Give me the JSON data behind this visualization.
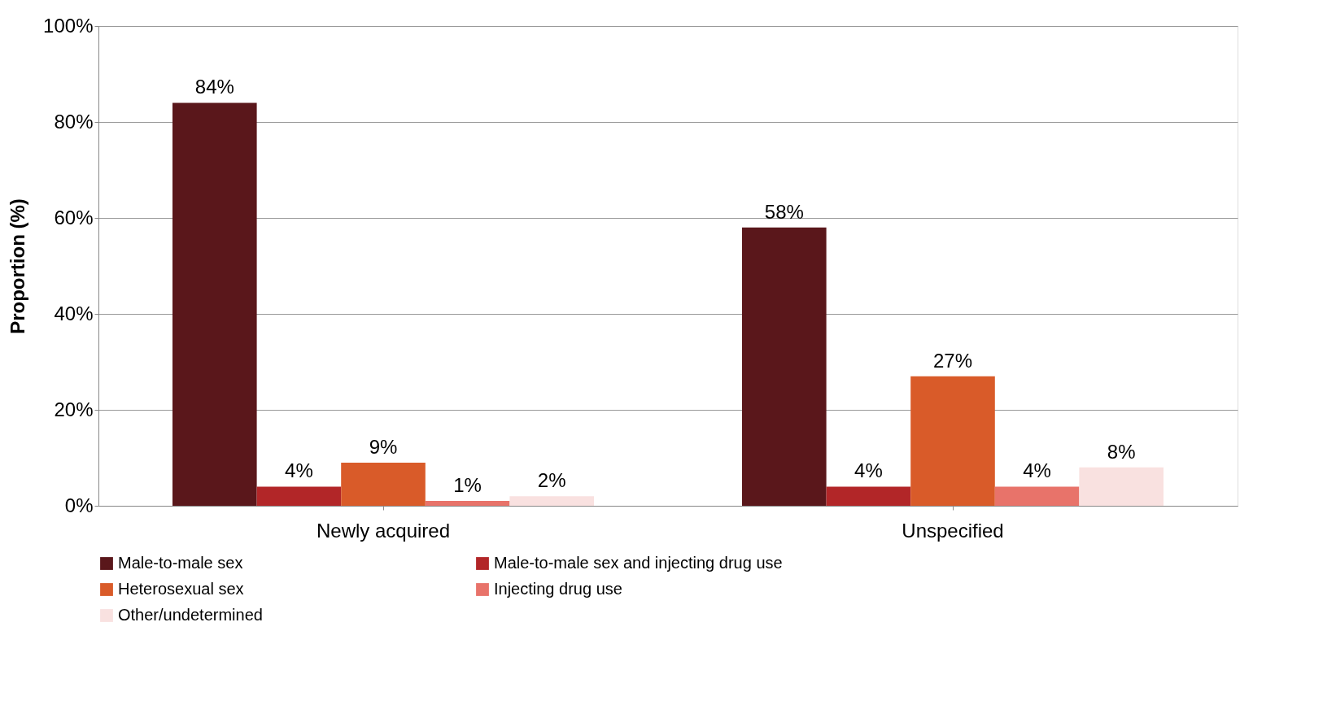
{
  "chart_data": {
    "type": "bar",
    "ylabel": "Proportion (%)",
    "categories": [
      "Newly acquired",
      "Unspecified"
    ],
    "series": [
      {
        "name": "Male-to-male sex",
        "color": "#5a171b",
        "values": [
          84,
          58
        ],
        "value_labels": [
          "84%",
          "58%"
        ]
      },
      {
        "name": "Male-to-male sex and injecting drug use",
        "color": "#b22628",
        "values": [
          4,
          4
        ],
        "value_labels": [
          "4%",
          "4%"
        ]
      },
      {
        "name": "Heterosexual sex",
        "color": "#d95b29",
        "values": [
          9,
          27
        ],
        "value_labels": [
          "9%",
          "27%"
        ]
      },
      {
        "name": "Injecting drug use",
        "color": "#e8736a",
        "values": [
          1,
          4
        ],
        "value_labels": [
          "1%",
          "4%"
        ]
      },
      {
        "name": "Other/undetermined",
        "color": "#f9e1e0",
        "values": [
          2,
          8
        ],
        "value_labels": [
          "2%",
          "8%"
        ]
      }
    ],
    "ylim": [
      0,
      100
    ],
    "yticks": [
      {
        "value": 0,
        "label": "0%"
      },
      {
        "value": 20,
        "label": "20%"
      },
      {
        "value": 40,
        "label": "40%"
      },
      {
        "value": 60,
        "label": "60%"
      },
      {
        "value": 80,
        "label": "80%"
      },
      {
        "value": 100,
        "label": "100%"
      }
    ],
    "grid": "y",
    "legend": "bottom"
  }
}
